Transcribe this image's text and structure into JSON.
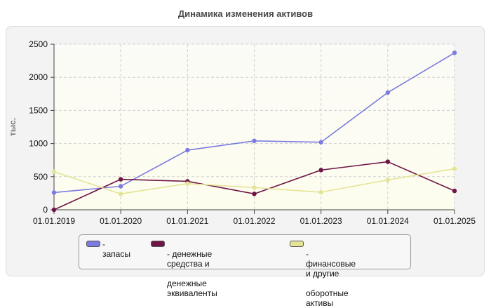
{
  "chart_data": {
    "type": "line",
    "title": "Динамика изменения активов",
    "ylabel": "тыс.",
    "xlabel": "",
    "ylim": [
      0,
      2500
    ],
    "yticks": [
      0,
      500,
      1000,
      1500,
      2000,
      2500
    ],
    "ytick_labels": [
      "0",
      "500",
      "1000",
      "1500",
      "2000",
      "2500"
    ],
    "categories": [
      "01.01.2019",
      "01.01.2020",
      "01.01.2021",
      "01.01.2022",
      "01.01.2023",
      "01.01.2024",
      "01.01.2025"
    ],
    "grid": true,
    "legend_position": "bottom-center",
    "series": [
      {
        "name": "- запасы",
        "color": "#7b7be0",
        "values": [
          260,
          355,
          900,
          1040,
          1020,
          1770,
          2370
        ]
      },
      {
        "name": "- денежные средства и денежные эквиваленты",
        "legend_lines": [
          "- денежные средства и",
          "денежные эквиваленты"
        ],
        "color": "#6e1446",
        "values": [
          0,
          460,
          430,
          240,
          600,
          725,
          285
        ]
      },
      {
        "name": "- финансовые и другие оборотные активы",
        "legend_lines": [
          "- финансовые и другие",
          "оборотные активы"
        ],
        "color": "#e4e496",
        "values": [
          575,
          240,
          395,
          335,
          265,
          450,
          620
        ]
      }
    ]
  }
}
